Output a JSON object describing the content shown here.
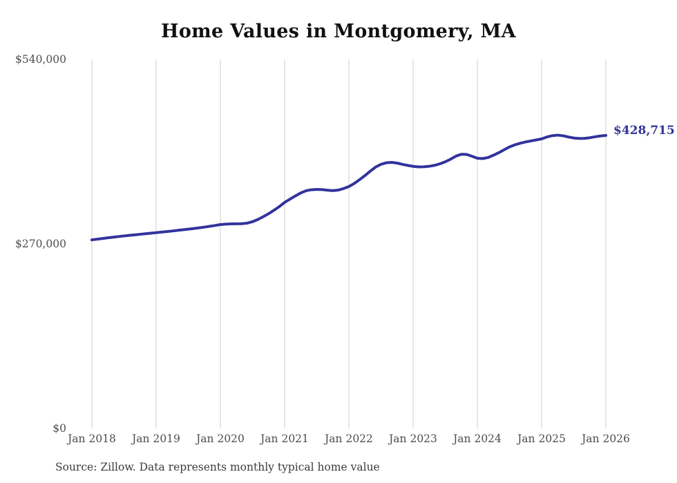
{
  "header": {
    "title": "Home Values in Montgomery, MA"
  },
  "footer": {
    "source_note": "Source: Zillow. Data represents monthly typical home value"
  },
  "colors": {
    "line": "#32329d",
    "end_label": "#333399",
    "gridline": "#cccccc",
    "axis_text": "#4d4d4d",
    "title_text": "#111111",
    "source_text": "#3b3b3b",
    "background": "#ffffff"
  },
  "chart_data": {
    "type": "line",
    "title": "Home Values in Montgomery, MA",
    "xlabel": "",
    "ylabel": "",
    "ylim": [
      0,
      540000
    ],
    "grid": "vertical-only",
    "legend": "none",
    "x_interval": "monthly",
    "x_start": "Jan 2018",
    "x_end": "Jan 2026",
    "x_tick_labels": [
      "Jan 2018",
      "Jan 2019",
      "Jan 2020",
      "Jan 2021",
      "Jan 2022",
      "Jan 2023",
      "Jan 2024",
      "Jan 2025",
      "Jan 2026"
    ],
    "y_ticks": [
      {
        "value": 0,
        "label": "$0"
      },
      {
        "value": 270000,
        "label": "$270,000"
      },
      {
        "value": 540000,
        "label": "$540,000"
      }
    ],
    "end_annotation": {
      "label": "$428,715",
      "value": 428715
    },
    "series": [
      {
        "name": "Monthly typical home value",
        "values": [
          276000,
          277000,
          278000,
          279000,
          279900,
          280800,
          281700,
          282500,
          283300,
          284100,
          284900,
          285700,
          286500,
          287300,
          288100,
          288900,
          289800,
          290700,
          291600,
          292500,
          293500,
          294600,
          295800,
          297000,
          298300,
          298900,
          299300,
          299500,
          299600,
          300400,
          302500,
          305800,
          309800,
          314200,
          319200,
          324600,
          330700,
          335500,
          340200,
          344600,
          347800,
          349300,
          349800,
          349500,
          348600,
          348000,
          348800,
          351000,
          353900,
          358500,
          364000,
          370000,
          376500,
          382500,
          386500,
          388800,
          389300,
          388300,
          386500,
          384900,
          383500,
          382800,
          382900,
          383600,
          385000,
          387200,
          390200,
          394000,
          398500,
          401200,
          401000,
          398300,
          395400,
          394900,
          396500,
          399800,
          403500,
          407800,
          412000,
          415000,
          417300,
          419200,
          420700,
          422200,
          423700,
          426500,
          428400,
          429200,
          428300,
          426500,
          425000,
          424300,
          424500,
          425400,
          426800,
          428000,
          428715
        ]
      }
    ]
  }
}
